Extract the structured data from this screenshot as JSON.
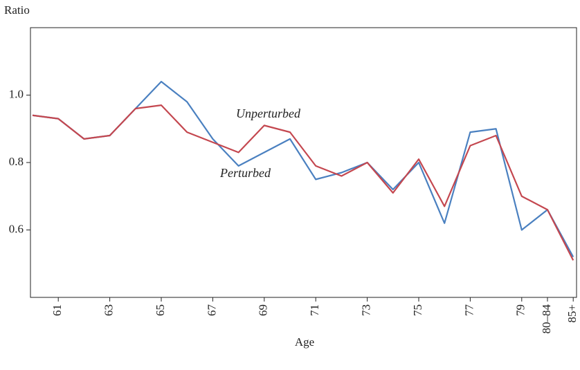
{
  "chart_data": {
    "type": "line",
    "y_label": "Ratio",
    "x_label": "Age",
    "categories": [
      null,
      "61",
      null,
      "63",
      null,
      "65",
      null,
      "67",
      null,
      "69",
      null,
      "71",
      null,
      "73",
      null,
      "75",
      null,
      "77",
      null,
      "79",
      "80–84",
      "85+"
    ],
    "series": [
      {
        "name": "Perturbed",
        "color": "#4a80c0",
        "values": [
          0.94,
          0.93,
          0.87,
          0.88,
          0.96,
          1.04,
          0.98,
          0.87,
          0.79,
          0.83,
          0.87,
          0.75,
          0.77,
          0.8,
          0.72,
          0.8,
          0.62,
          0.89,
          0.9,
          0.6,
          0.66,
          0.52
        ]
      },
      {
        "name": "Unperturbed",
        "color": "#c4474f",
        "values": [
          0.94,
          0.93,
          0.87,
          0.88,
          0.96,
          0.97,
          0.89,
          0.86,
          0.83,
          0.91,
          0.89,
          0.79,
          0.76,
          0.8,
          0.71,
          0.81,
          0.67,
          0.85,
          0.88,
          0.7,
          0.66,
          0.51
        ]
      }
    ],
    "ylim": [
      0.4,
      1.2
    ],
    "yticks": [
      0.6,
      0.8,
      {
        "value": 1,
        "label": "1.0"
      }
    ]
  }
}
